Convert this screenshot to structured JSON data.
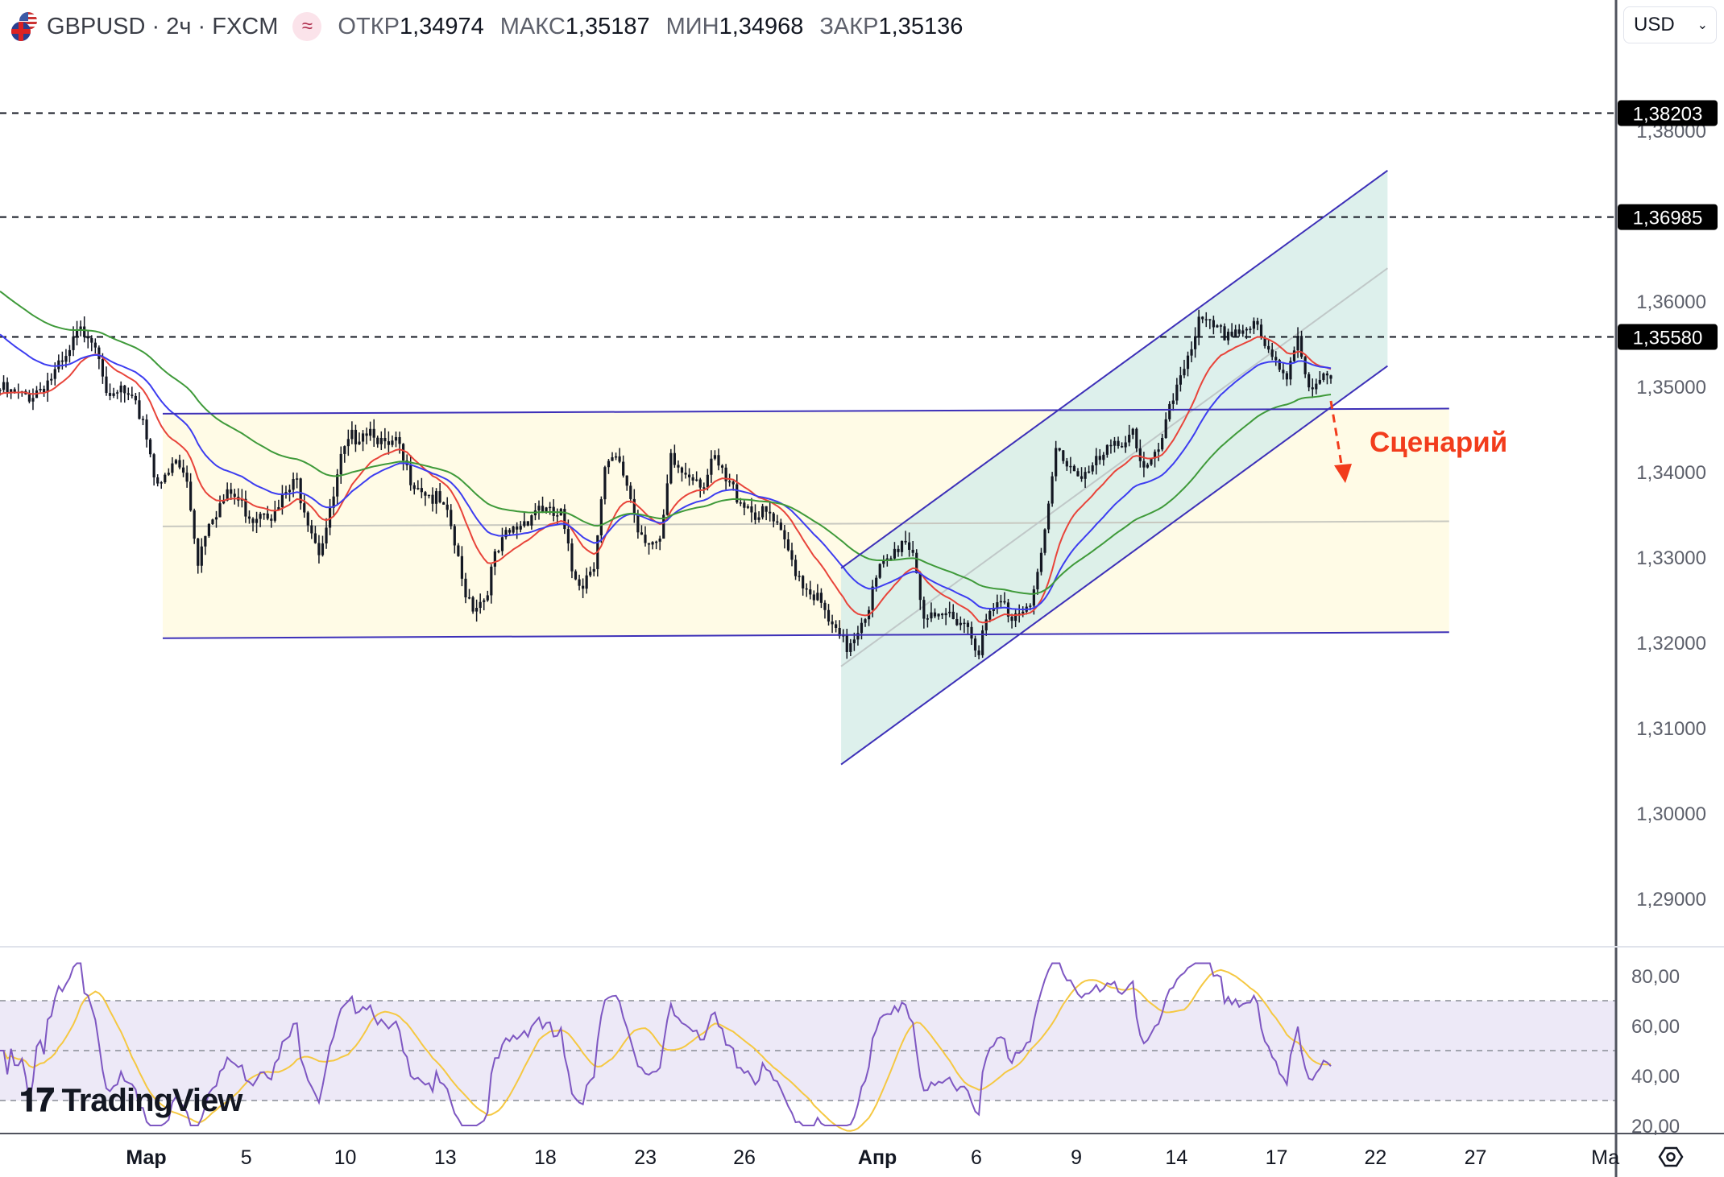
{
  "header": {
    "symbol": "GBPUSD · 2ч · FXCM",
    "indicator_icon": "wave-icon",
    "open_label": "ОТКР",
    "open": "1,34974",
    "high_label": "МАКС",
    "high": "1,35187",
    "low_label": "МИН",
    "low": "1,34968",
    "close_label": "ЗАКР",
    "close": "1,35136"
  },
  "currency": {
    "value": "USD"
  },
  "logo": {
    "text": "TradingView"
  },
  "price_axis": {
    "ticks": [
      "1,38000",
      "1,36000",
      "1,35000",
      "1,34000",
      "1,33000",
      "1,32000",
      "1,31000",
      "1,30000",
      "1,29000"
    ],
    "tick_values": [
      1.38,
      1.36,
      1.35,
      1.34,
      1.33,
      1.32,
      1.31,
      1.3,
      1.29
    ],
    "marked_levels": [
      {
        "label": "1,38203",
        "value": 1.38203
      },
      {
        "label": "1,36985",
        "value": 1.36985
      },
      {
        "label": "1,35580",
        "value": 1.3558
      }
    ]
  },
  "rsi_axis": {
    "ticks": [
      "80,00",
      "60,00",
      "40,00",
      "20,00"
    ],
    "tick_values": [
      80,
      60,
      40,
      20
    ],
    "bands": [
      70,
      50,
      30
    ]
  },
  "time_axis": {
    "labels": [
      "Мар",
      "5",
      "10",
      "13",
      "18",
      "23",
      "26",
      "Апр",
      "6",
      "9",
      "14",
      "17",
      "22",
      "27",
      "Ма"
    ]
  },
  "annotation": {
    "text": "Сценарий",
    "color": "#f23c1c"
  },
  "colors": {
    "ma_fast": "#e8443a",
    "ma_mid": "#3d3df0",
    "ma_slow": "#3f9a3a",
    "rsi": "#7e57c2",
    "rsi_ma": "#f5c842",
    "channel": "#3d30b8",
    "range_fill": "#fffbe6",
    "channel_fill": "#d7ede9"
  },
  "drawings": {
    "range_box": {
      "top": [
        1.3468,
        1.3474
      ],
      "bottom": [
        1.3205,
        1.3212
      ],
      "mid": [
        1.3336,
        1.3342
      ]
    },
    "channel": {
      "lower": [
        1.3057,
        1.3524
      ],
      "upper": [
        1.3287,
        1.3753
      ]
    }
  },
  "chart_data": {
    "type": "candlestick",
    "symbol": "GBPUSD",
    "timeframe": "2ч",
    "approx_closes": [
      1.3496,
      1.349,
      1.3487,
      1.3492,
      1.3503,
      1.3515,
      1.3528,
      1.356,
      1.3567,
      1.3544,
      1.3477,
      1.3496,
      1.3477,
      1.3464,
      1.34,
      1.3387,
      1.3412,
      1.3387,
      1.3297,
      1.3348,
      1.3361,
      1.3374,
      1.3361,
      1.3348,
      1.3361,
      1.3348,
      1.3374,
      1.3387,
      1.3348,
      1.331,
      1.3348,
      1.3412,
      1.3438,
      1.3451,
      1.3451,
      1.3425,
      1.3432,
      1.34,
      1.3387,
      1.3374,
      1.3361,
      1.3335,
      1.3271,
      1.3245,
      1.3252,
      1.3297,
      1.3322,
      1.3335,
      1.3348,
      1.3361,
      1.3348,
      1.3348,
      1.3284,
      1.3271,
      1.3297,
      1.34,
      1.3412,
      1.3387,
      1.3335,
      1.3322,
      1.331,
      1.3412,
      1.34,
      1.34,
      1.3387,
      1.3412,
      1.3387,
      1.3374,
      1.3361,
      1.3348,
      1.3348,
      1.3322,
      1.3297,
      1.3271,
      1.3258,
      1.3232,
      1.3207,
      1.3194,
      1.3219,
      1.3245,
      1.3284,
      1.3297,
      1.3322,
      1.331,
      1.3232,
      1.3219,
      1.3232,
      1.3232,
      1.3219,
      1.3194,
      1.3232,
      1.3245,
      1.3232,
      1.3245,
      1.3258,
      1.3322,
      1.3425,
      1.3412,
      1.34,
      1.34,
      1.3412,
      1.3425,
      1.3438,
      1.3451,
      1.34,
      1.3412,
      1.3451,
      1.3503,
      1.3541,
      1.3573,
      1.3567,
      1.356,
      1.3567,
      1.3567,
      1.3573,
      1.3541,
      1.3528,
      1.3515,
      1.3567,
      1.349,
      1.3503,
      1.3509
    ],
    "ylim": [
      1.285,
      1.385
    ],
    "rsi_ylim": [
      20,
      85
    ]
  }
}
